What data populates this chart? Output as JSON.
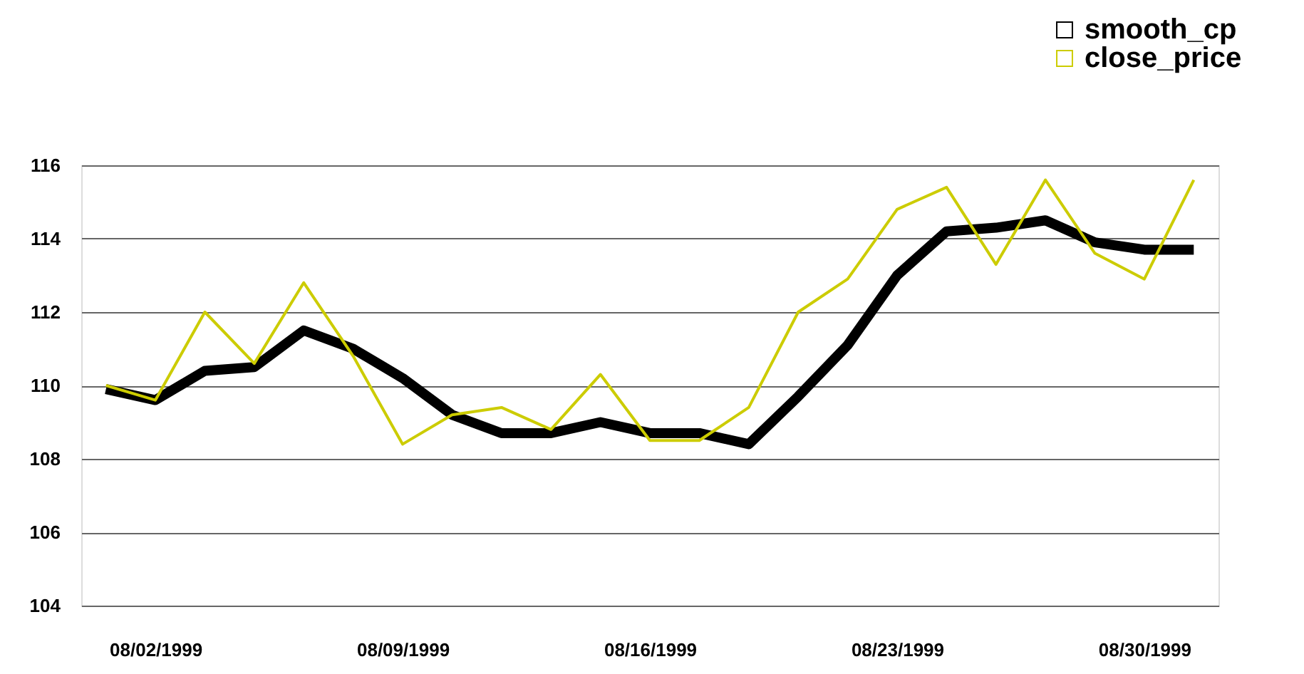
{
  "chart_data": {
    "type": "line",
    "categories": [
      null,
      "08/02/1999",
      null,
      null,
      null,
      null,
      "08/09/1999",
      null,
      null,
      null,
      null,
      "08/16/1999",
      null,
      null,
      null,
      null,
      "08/23/1999",
      null,
      null,
      null,
      null,
      "08/30/1999",
      null
    ],
    "series": [
      {
        "name": "smooth_cp",
        "color": "#000000",
        "values": [
          109.9,
          109.6,
          110.4,
          110.5,
          111.5,
          111.0,
          110.2,
          109.2,
          108.7,
          108.7,
          109.0,
          108.7,
          108.7,
          108.4,
          109.7,
          111.1,
          113.0,
          114.2,
          114.3,
          114.5,
          113.9,
          113.7,
          113.7
        ]
      },
      {
        "name": "close_price",
        "color": "#cccc00",
        "values": [
          110.0,
          109.6,
          112.0,
          110.6,
          112.8,
          110.8,
          108.4,
          109.2,
          109.4,
          108.8,
          110.3,
          108.5,
          108.5,
          109.4,
          112.0,
          112.9,
          114.8,
          115.4,
          113.3,
          115.6,
          113.6,
          112.9,
          115.6
        ]
      }
    ],
    "ylim": [
      104,
      116
    ],
    "yticks": [
      104,
      106,
      108,
      110,
      112,
      114,
      116
    ],
    "grid": "y",
    "legend": "top right"
  }
}
